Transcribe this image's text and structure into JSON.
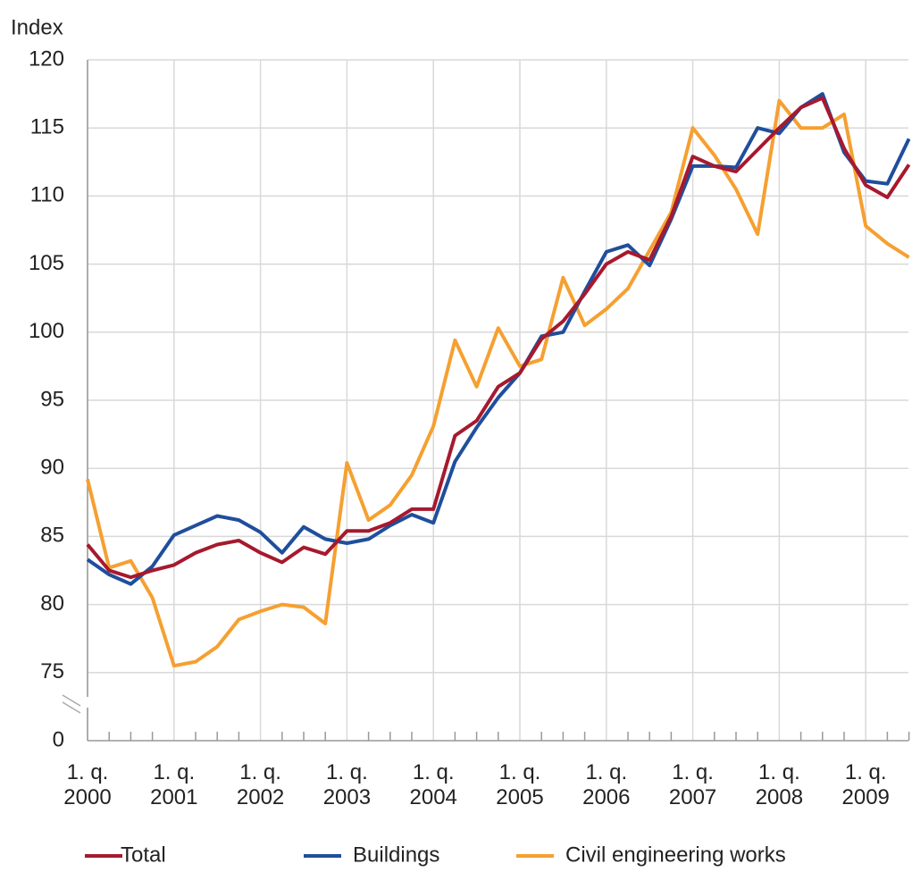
{
  "chart_data": {
    "type": "line",
    "y_axis_label": "Index",
    "axis_break": true,
    "ylim": [
      70,
      120
    ],
    "yticks": [
      0,
      75,
      80,
      85,
      90,
      95,
      100,
      105,
      110,
      115,
      120
    ],
    "grid": true,
    "legend": "bottom",
    "categories": [
      "1. q. 2000",
      null,
      null,
      null,
      "1. q. 2001",
      null,
      null,
      null,
      "1. q. 2002",
      null,
      null,
      null,
      "1. q. 2003",
      null,
      null,
      null,
      "1. q. 2004",
      null,
      null,
      null,
      "1. q. 2005",
      null,
      null,
      null,
      "1. q. 2006",
      null,
      null,
      null,
      "1. q. 2007",
      null,
      null,
      null,
      "1. q. 2008",
      null,
      null,
      null,
      "1. q. 2009",
      null,
      null
    ],
    "series": [
      {
        "name": "Total",
        "color": "#a6192e",
        "values": [
          84.4,
          82.5,
          82.0,
          82.5,
          82.9,
          83.8,
          84.4,
          84.7,
          83.8,
          83.1,
          84.2,
          83.7,
          85.4,
          85.4,
          86.0,
          87.0,
          87.0,
          92.4,
          93.5,
          96.0,
          97.0,
          99.5,
          100.8,
          102.8,
          105.0,
          105.9,
          105.3,
          108.5,
          112.9,
          112.2,
          111.8,
          113.4,
          115.0,
          116.5,
          117.2,
          113.5,
          110.8,
          109.9,
          112.3
        ]
      },
      {
        "name": "Buildings",
        "color": "#1f4e9c",
        "values": [
          83.3,
          82.2,
          81.5,
          82.8,
          85.1,
          85.8,
          86.5,
          86.2,
          85.3,
          83.8,
          85.7,
          84.8,
          84.5,
          84.8,
          85.8,
          86.6,
          86.0,
          90.5,
          93.0,
          95.2,
          97.0,
          99.7,
          100.0,
          103.0,
          105.9,
          106.4,
          104.9,
          108.3,
          112.2,
          112.2,
          112.1,
          115.0,
          114.6,
          116.5,
          117.5,
          113.2,
          111.1,
          110.9,
          114.2
        ]
      },
      {
        "name": "Civil engineering works",
        "color": "#f5a031",
        "values": [
          89.2,
          82.7,
          83.2,
          80.5,
          75.5,
          75.8,
          76.9,
          78.9,
          79.5,
          80.0,
          79.8,
          78.6,
          90.4,
          86.2,
          87.3,
          89.5,
          93.1,
          99.4,
          96.0,
          100.3,
          97.5,
          98.0,
          104.0,
          100.5,
          101.7,
          103.2,
          106.0,
          108.8,
          115.0,
          113.0,
          110.5,
          107.2,
          117.0,
          115.0,
          115.0,
          116.0,
          107.8,
          106.5,
          105.5
        ]
      }
    ]
  }
}
